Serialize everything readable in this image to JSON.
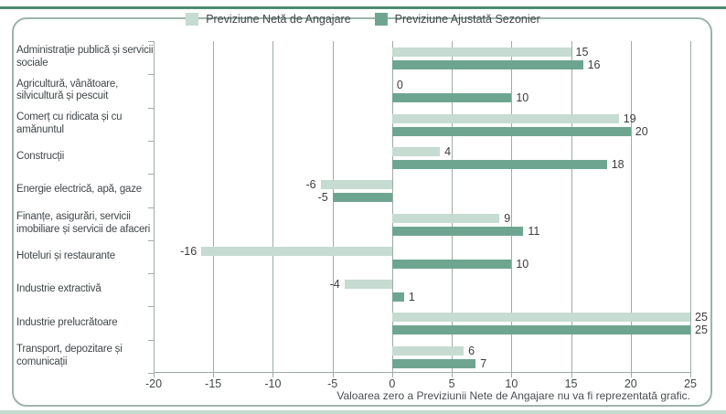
{
  "colors": {
    "net_bar": "#c6dbd1",
    "seasonal_bar": "#6ea591",
    "frame_border": "#9cb5aa",
    "top_line": "#4f8a71",
    "bottom_line": "#c3dccf",
    "grid": "#9faca5",
    "text": "#41474a",
    "value_text": "#3c3c3c"
  },
  "legend": {
    "items": [
      {
        "label": "Previziune Netă de Angajare",
        "swatch": "net_bar"
      },
      {
        "label": "Previziune Ajustată Sezonier",
        "swatch": "seasonal_bar"
      }
    ]
  },
  "chart_data": {
    "type": "bar",
    "orientation": "horizontal",
    "categories": [
      "Administrație publică și servicii sociale",
      "Agricultură, vânătoare, silvicultură și pescuit",
      "Comerț cu ridicata și cu amănuntul",
      "Construcții",
      "Energie electrică, apă, gaze",
      "Finanțe, asigurări, servicii imobiliare și servicii de afaceri",
      "Hoteluri și restaurante",
      "Industrie extractivă",
      "Industrie prelucrătoare",
      "Transport, depozitare și comunicații"
    ],
    "series": [
      {
        "name": "Previziune Netă de Angajare",
        "values": [
          15,
          0,
          19,
          4,
          -6,
          9,
          -16,
          -4,
          25,
          6
        ]
      },
      {
        "name": "Previziune Ajustată Sezonier",
        "values": [
          16,
          10,
          20,
          18,
          -5,
          11,
          10,
          1,
          25,
          7
        ]
      }
    ],
    "xlim": [
      -20,
      25
    ],
    "xticks": [
      -20,
      -15,
      -10,
      -5,
      0,
      5,
      10,
      15,
      20,
      25
    ],
    "grid": true,
    "legend_position": "top",
    "note": "Valoarea zero a Previziunii Nete de Angajare nu va fi reprezentată grafic."
  }
}
